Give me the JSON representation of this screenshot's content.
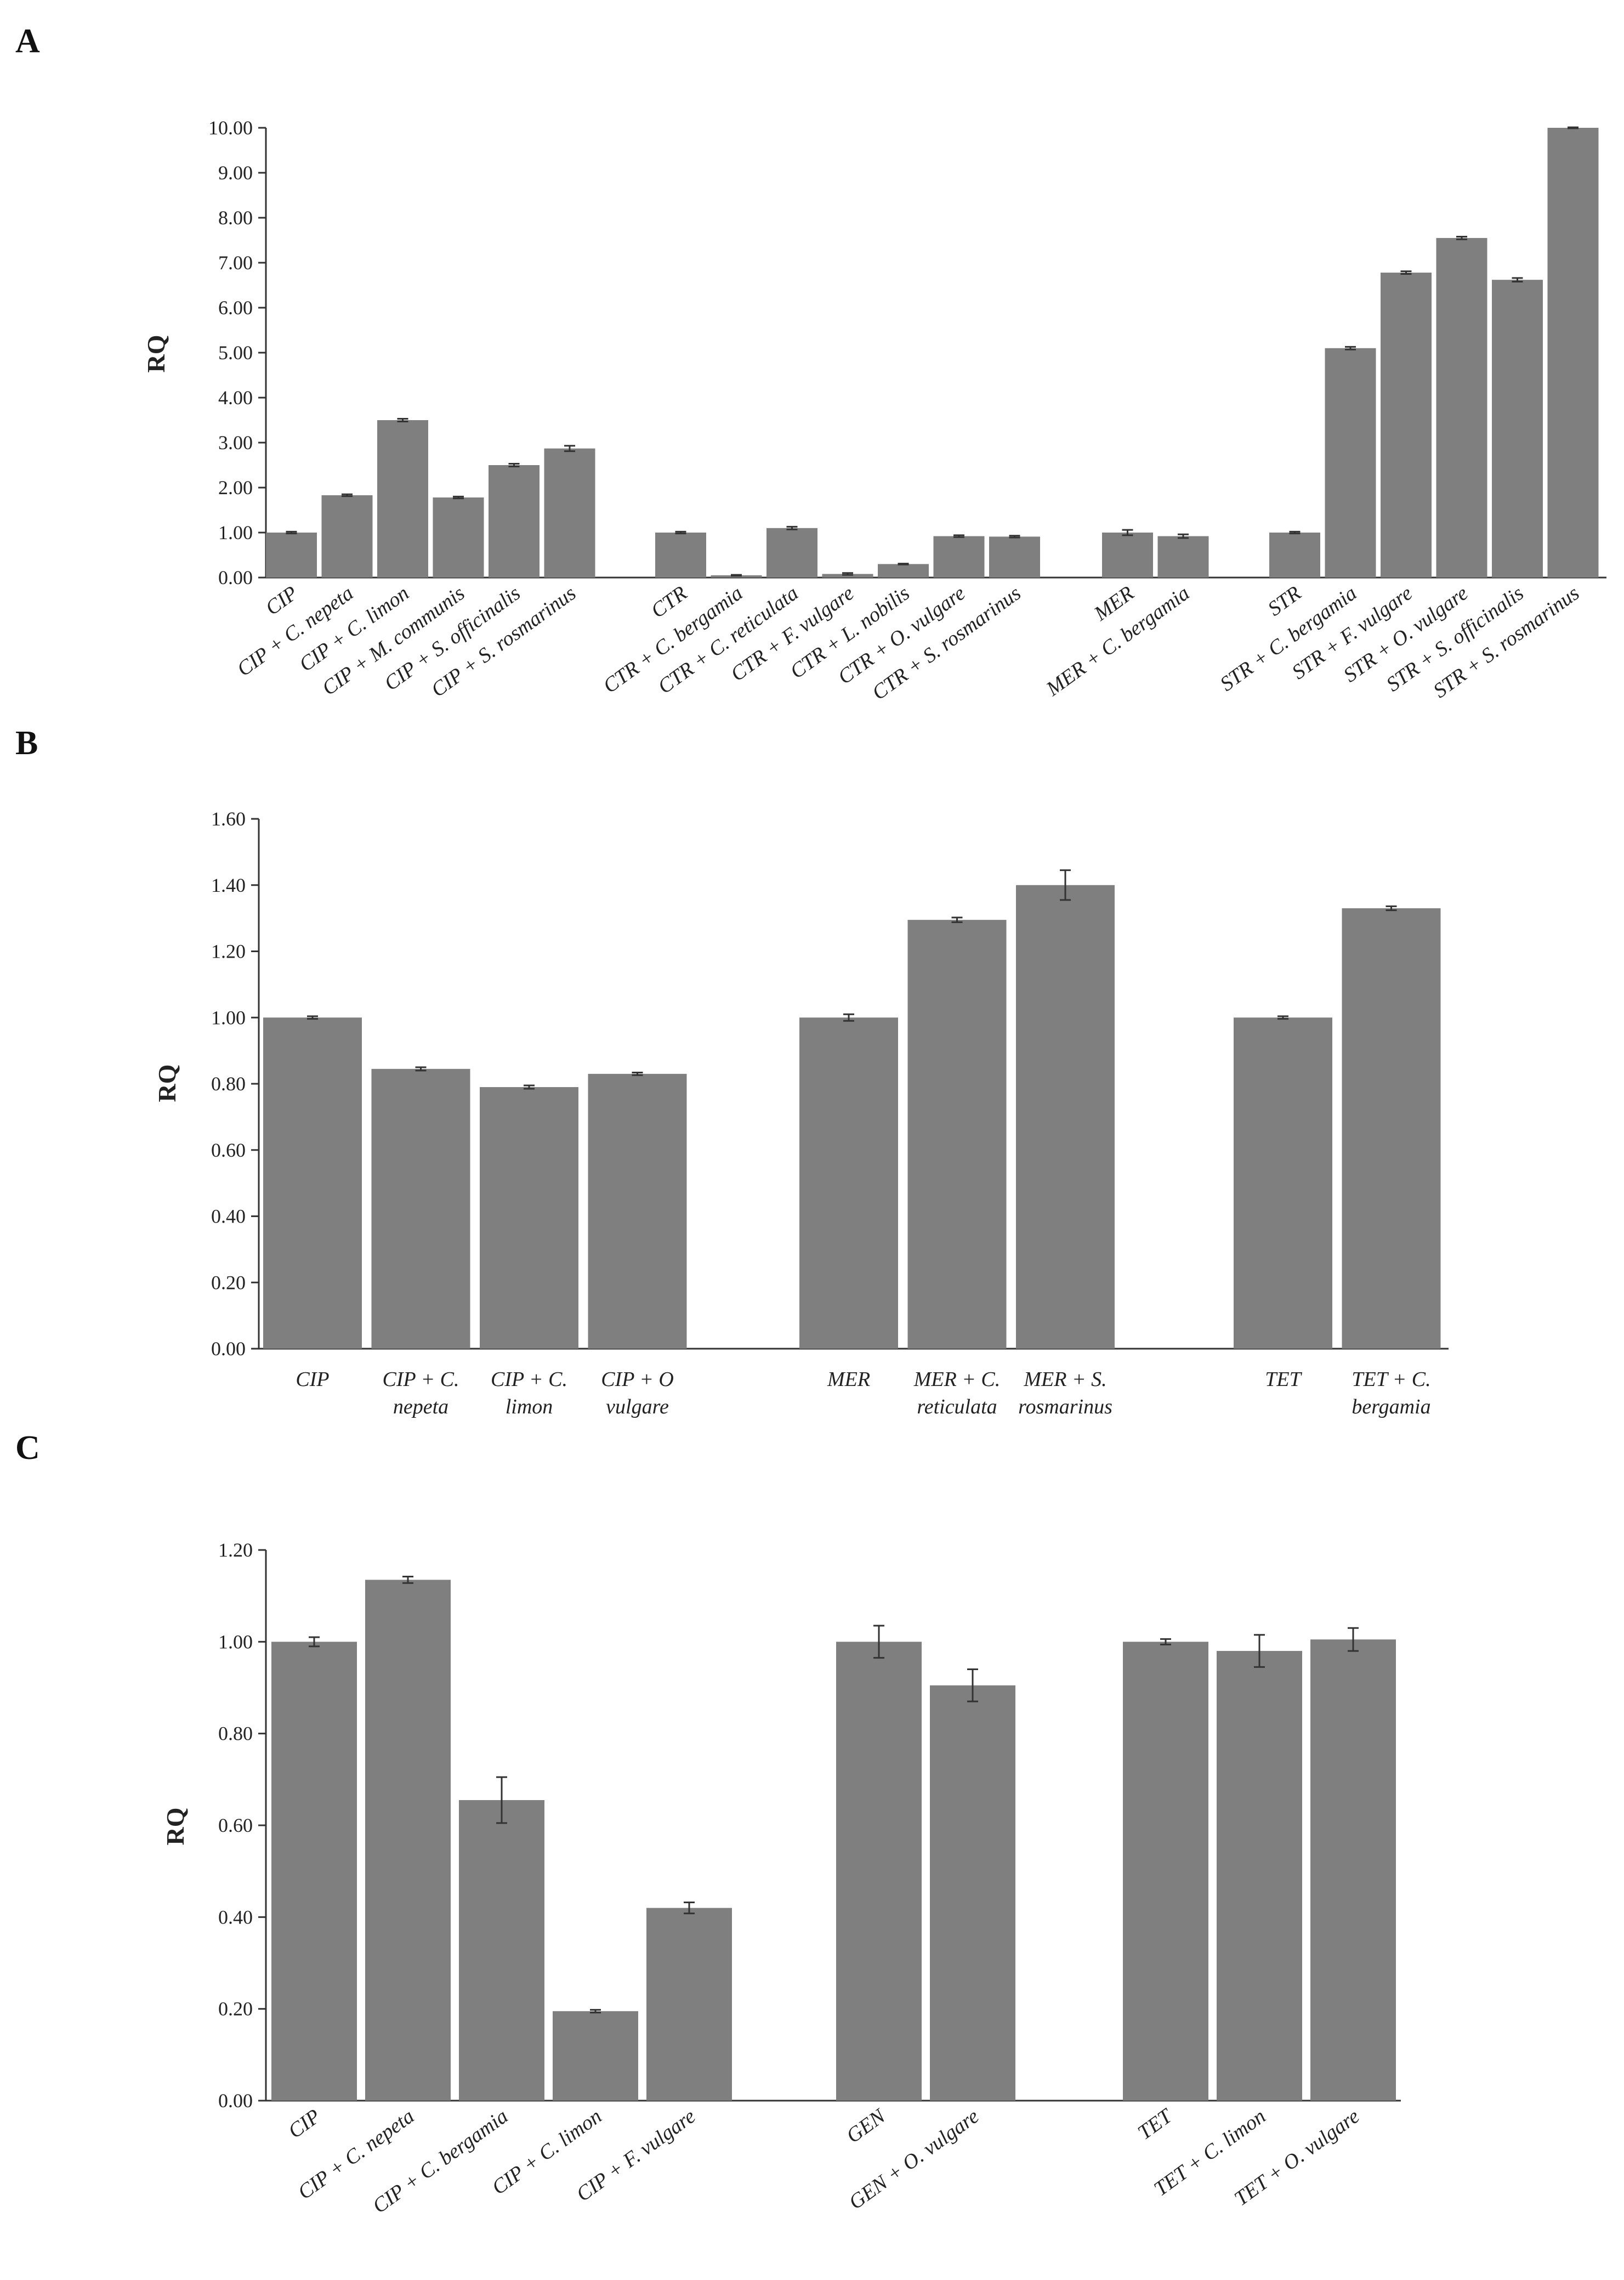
{
  "chart_data": [
    {
      "panel": "A",
      "type": "bar",
      "ylabel": "RQ",
      "ylim": [
        0,
        10
      ],
      "yticks": [
        "0.00",
        "1.00",
        "2.00",
        "3.00",
        "4.00",
        "5.00",
        "6.00",
        "7.00",
        "8.00",
        "9.00",
        "10.00"
      ],
      "label_style": "rotated",
      "groups": [
        {
          "categories": [
            "CIP",
            "CIP + C. nepeta",
            "CIP + C. limon",
            "CIP + M. communis",
            "CIP + S. officinalis",
            "CIP + S. rosmarinus"
          ],
          "values": [
            1.0,
            1.83,
            3.5,
            1.78,
            2.5,
            2.87
          ],
          "errors": [
            0.02,
            0.02,
            0.03,
            0.02,
            0.03,
            0.06
          ]
        },
        {
          "categories": [
            "CTR",
            "CTR + C. bergamia",
            "CTR + C. reticulata",
            "CTR + F. vulgare",
            "CTR + L. nobilis",
            "CTR + O. vulgare",
            "CTR + S. rosmarinus"
          ],
          "values": [
            1.0,
            0.05,
            1.1,
            0.08,
            0.3,
            0.92,
            0.91
          ],
          "errors": [
            0.02,
            0.01,
            0.03,
            0.02,
            0.01,
            0.02,
            0.02
          ]
        },
        {
          "categories": [
            "MER",
            "MER + C. bergamia"
          ],
          "values": [
            1.0,
            0.92
          ],
          "errors": [
            0.06,
            0.04
          ]
        },
        {
          "categories": [
            "STR",
            "STR + C. bergamia",
            "STR + F. vulgare",
            "STR + O. vulgare",
            "STR + S. officinalis",
            "STR + S. rosmarinus"
          ],
          "values": [
            1.0,
            5.1,
            6.78,
            7.55,
            6.62,
            10.0
          ],
          "errors": [
            0.02,
            0.03,
            0.03,
            0.03,
            0.04,
            0.01
          ]
        }
      ]
    },
    {
      "panel": "B",
      "type": "bar",
      "ylabel": "RQ",
      "ylim": [
        0,
        1.6
      ],
      "yticks": [
        "0.00",
        "0.20",
        "0.40",
        "0.60",
        "0.80",
        "1.00",
        "1.20",
        "1.40",
        "1.60"
      ],
      "label_style": "wrapped",
      "groups": [
        {
          "categories": [
            [
              "CIP"
            ],
            [
              "CIP + C.",
              "nepeta"
            ],
            [
              "CIP + C.",
              "limon"
            ],
            [
              "CIP + O",
              "vulgare"
            ]
          ],
          "values": [
            1.0,
            0.845,
            0.79,
            0.83
          ],
          "errors": [
            0.004,
            0.005,
            0.005,
            0.004
          ]
        },
        {
          "categories": [
            [
              "MER"
            ],
            [
              "MER + C.",
              "reticulata"
            ],
            [
              "MER + S.",
              "rosmarinus"
            ]
          ],
          "values": [
            1.0,
            1.295,
            1.4
          ],
          "errors": [
            0.01,
            0.007,
            0.045
          ]
        },
        {
          "categories": [
            [
              "TET"
            ],
            [
              "TET + C.",
              "bergamia"
            ]
          ],
          "values": [
            1.0,
            1.33
          ],
          "errors": [
            0.004,
            0.006
          ]
        }
      ]
    },
    {
      "panel": "C",
      "type": "bar",
      "ylabel": "RQ",
      "ylim": [
        0,
        1.2
      ],
      "yticks": [
        "0.00",
        "0.20",
        "0.40",
        "0.60",
        "0.80",
        "1.00",
        "1.20"
      ],
      "label_style": "rotated",
      "groups": [
        {
          "categories": [
            "CIP",
            "CIP + C. nepeta",
            "CIP + C. bergamia",
            "CIP + C. limon",
            "CIP + F. vulgare"
          ],
          "values": [
            1.0,
            1.135,
            0.655,
            0.195,
            0.42
          ],
          "errors": [
            0.01,
            0.007,
            0.05,
            0.003,
            0.012
          ]
        },
        {
          "categories": [
            "GEN",
            "GEN + O. vulgare"
          ],
          "values": [
            1.0,
            0.905
          ],
          "errors": [
            0.035,
            0.035
          ]
        },
        {
          "categories": [
            "TET",
            "TET + C. limon",
            "TET + O. vulgare"
          ],
          "values": [
            1.0,
            0.98,
            1.005
          ],
          "errors": [
            0.006,
            0.035,
            0.025
          ]
        }
      ]
    }
  ]
}
